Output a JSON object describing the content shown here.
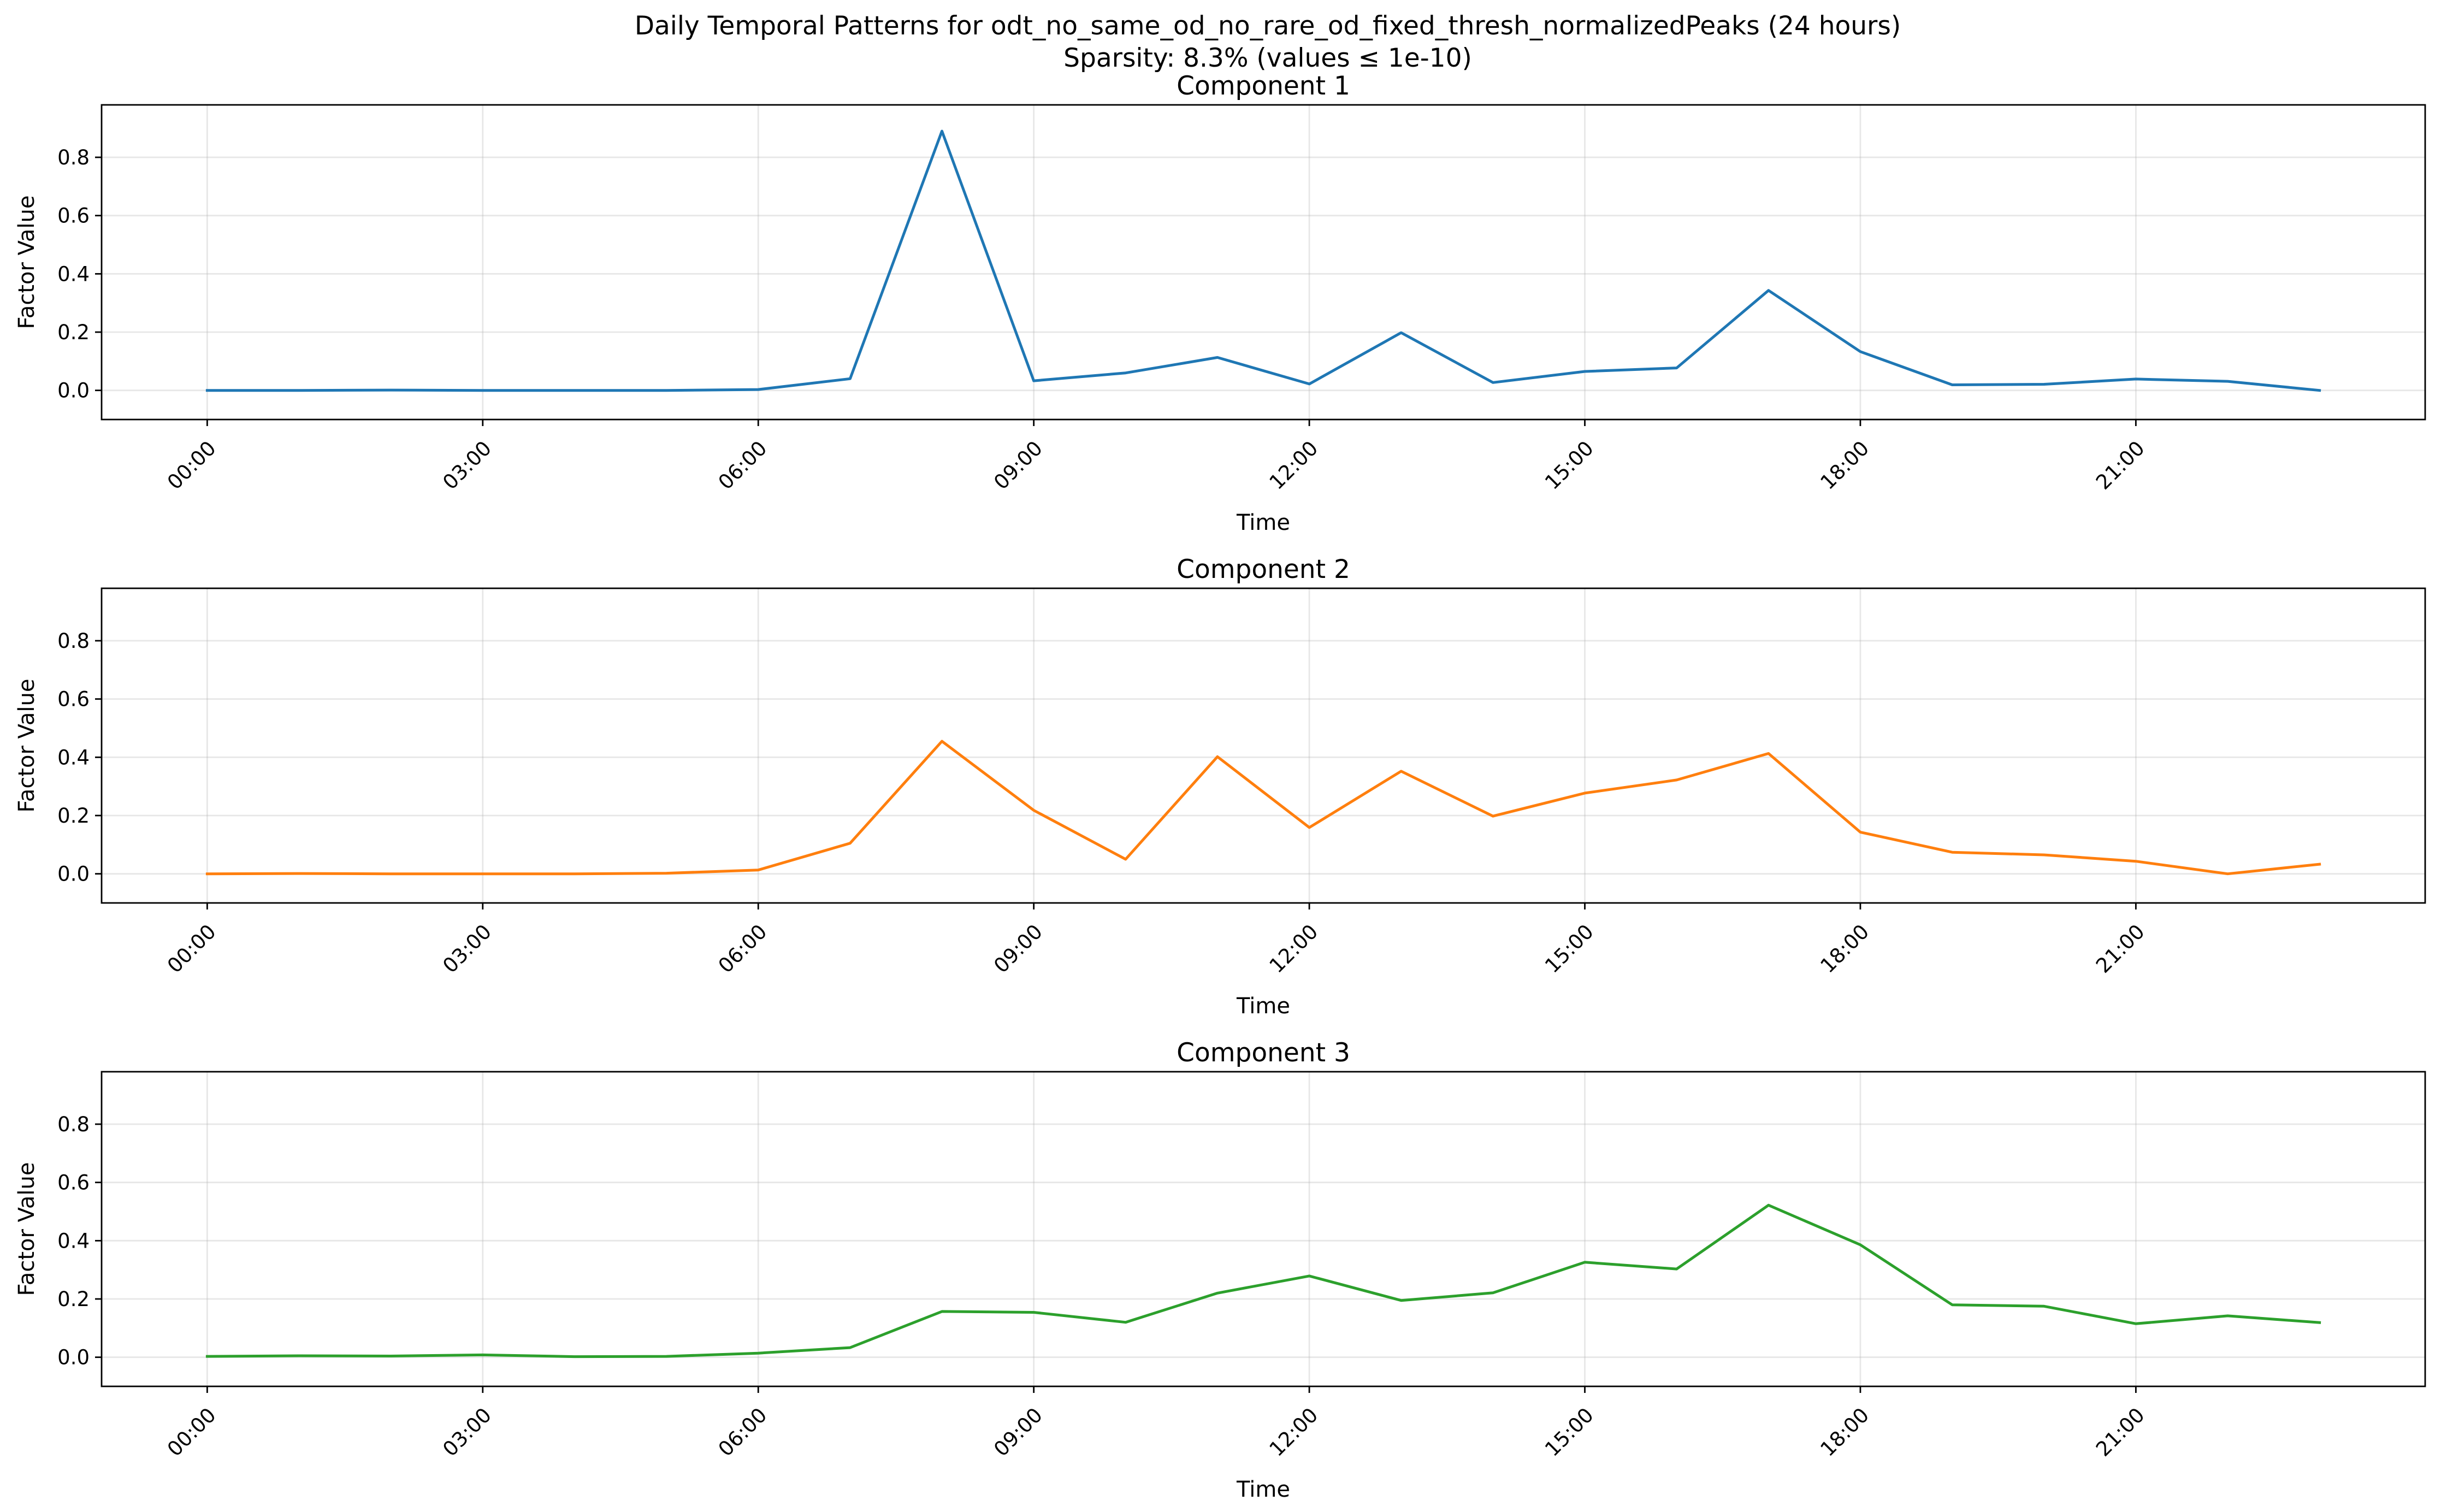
{
  "figure": {
    "title_line1": "Daily Temporal Patterns for odt_no_same_od_no_rare_od_fixed_thresh_normalizedPeaks (24 hours)",
    "title_line2": "Sparsity: 8.3% (values ≤ 1e-10)"
  },
  "chart_data": [
    {
      "type": "line",
      "title": "Component 1",
      "xlabel": "Time",
      "ylabel": "Factor Value",
      "xticks": [
        "00:00",
        "03:00",
        "06:00",
        "09:00",
        "12:00",
        "15:00",
        "18:00",
        "21:00"
      ],
      "yticks": [
        "0.0",
        "0.2",
        "0.4",
        "0.6",
        "0.8"
      ],
      "xlim": [
        -1.15,
        24.15
      ],
      "ylim": [
        -0.1,
        0.98
      ],
      "grid": true,
      "color": "#1f77b4",
      "x": [
        0,
        1,
        2,
        3,
        4,
        5,
        6,
        7,
        8,
        9,
        10,
        11,
        12,
        13,
        14,
        15,
        16,
        17,
        18,
        19,
        20,
        21,
        22,
        23
      ],
      "values": [
        0.0,
        0.0,
        0.001,
        0.0,
        0.0,
        0.0,
        0.003,
        0.04,
        0.89,
        0.033,
        0.06,
        0.113,
        0.022,
        0.198,
        0.027,
        0.065,
        0.077,
        0.343,
        0.133,
        0.019,
        0.021,
        0.039,
        0.031,
        0.0
      ]
    },
    {
      "type": "line",
      "title": "Component 2",
      "xlabel": "Time",
      "ylabel": "Factor Value",
      "xticks": [
        "00:00",
        "03:00",
        "06:00",
        "09:00",
        "12:00",
        "15:00",
        "18:00",
        "21:00"
      ],
      "yticks": [
        "0.0",
        "0.2",
        "0.4",
        "0.6",
        "0.8"
      ],
      "xlim": [
        -1.15,
        24.15
      ],
      "ylim": [
        -0.1,
        0.98
      ],
      "grid": true,
      "color": "#ff7f0e",
      "x": [
        0,
        1,
        2,
        3,
        4,
        5,
        6,
        7,
        8,
        9,
        10,
        11,
        12,
        13,
        14,
        15,
        16,
        17,
        18,
        19,
        20,
        21,
        22,
        23
      ],
      "values": [
        0.0,
        0.001,
        0.0,
        0.0,
        0.0,
        0.002,
        0.013,
        0.105,
        0.455,
        0.218,
        0.05,
        0.402,
        0.159,
        0.352,
        0.198,
        0.277,
        0.322,
        0.413,
        0.143,
        0.074,
        0.065,
        0.043,
        0.0,
        0.033
      ]
    },
    {
      "type": "line",
      "title": "Component 3",
      "xlabel": "Time",
      "ylabel": "Factor Value",
      "xticks": [
        "00:00",
        "03:00",
        "06:00",
        "09:00",
        "12:00",
        "15:00",
        "18:00",
        "21:00"
      ],
      "yticks": [
        "0.0",
        "0.2",
        "0.4",
        "0.6",
        "0.8"
      ],
      "xlim": [
        -1.15,
        24.15
      ],
      "ylim": [
        -0.1,
        0.98
      ],
      "grid": true,
      "color": "#2ca02c",
      "x": [
        0,
        1,
        2,
        3,
        4,
        5,
        6,
        7,
        8,
        9,
        10,
        11,
        12,
        13,
        14,
        15,
        16,
        17,
        18,
        19,
        20,
        21,
        22,
        23
      ],
      "values": [
        0.003,
        0.005,
        0.004,
        0.008,
        0.002,
        0.003,
        0.014,
        0.033,
        0.157,
        0.154,
        0.12,
        0.22,
        0.279,
        0.195,
        0.221,
        0.326,
        0.303,
        0.522,
        0.386,
        0.18,
        0.175,
        0.115,
        0.142,
        0.119
      ]
    }
  ]
}
